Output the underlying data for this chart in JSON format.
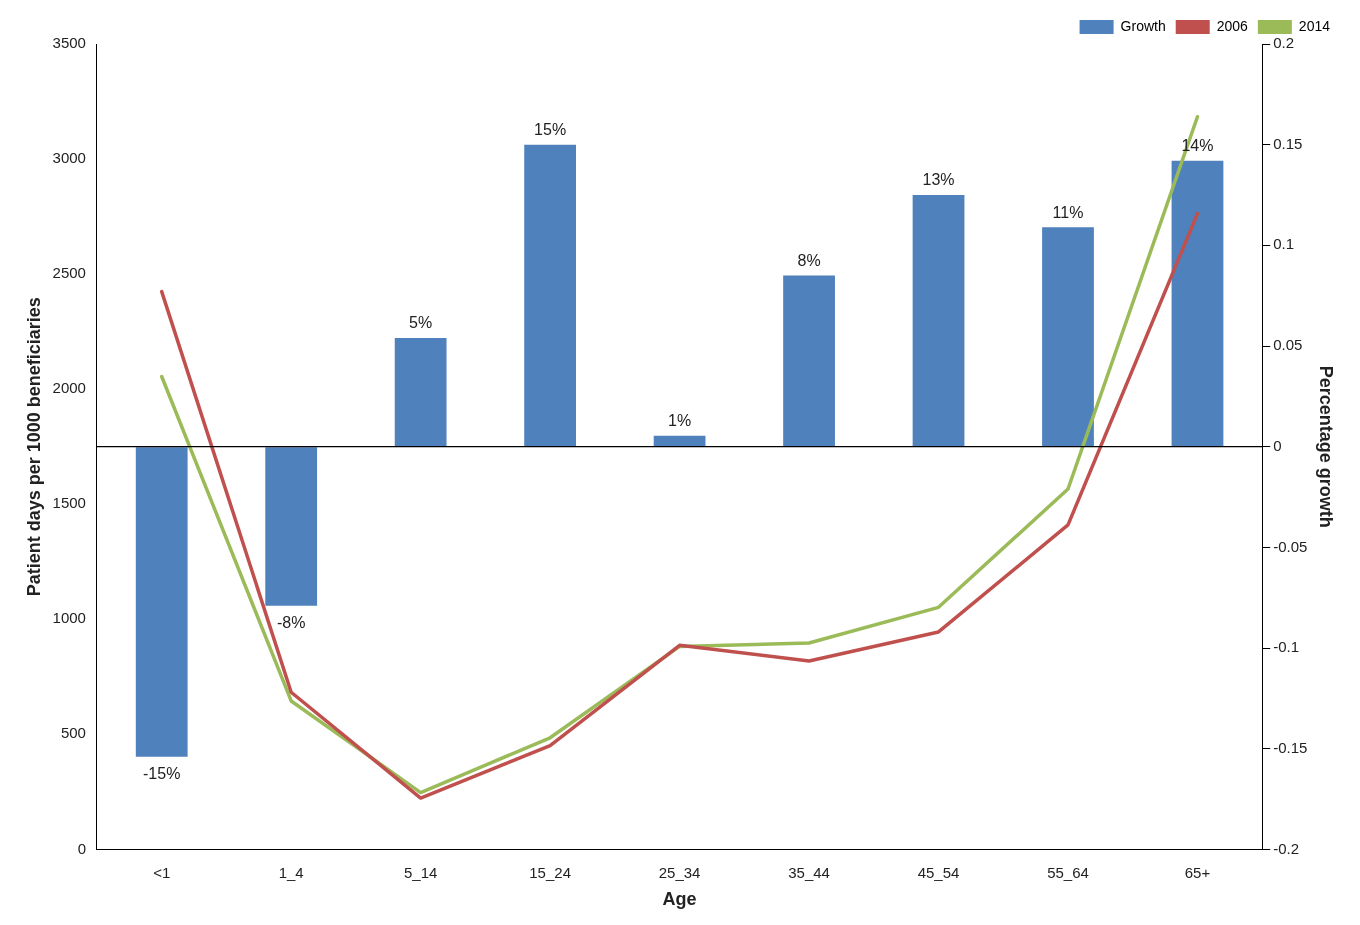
{
  "chart_data": {
    "type": "bar",
    "xlabel": "Age",
    "ylabel": "Patient days per 1000 beneficiaries",
    "y2label": "Percentage growth",
    "categories": [
      "<1",
      "1_4",
      "5_14",
      "15_24",
      "25_34",
      "35_44",
      "45_54",
      "55_64",
      "65+"
    ],
    "series": [
      {
        "name": "Growth",
        "axis": "y2",
        "color": "#4f81bd",
        "values": [
          -0.154,
          -0.079,
          0.054,
          0.15,
          0.0055,
          0.085,
          0.125,
          0.109,
          0.142
        ],
        "value_labels": [
          "-15%",
          "-8%",
          "5%",
          "15%",
          "1%",
          "8%",
          "13%",
          "11%",
          "14%"
        ]
      },
      {
        "name": "2006",
        "type": "line",
        "color": "#c0504d",
        "values": [
          2424,
          683,
          223,
          451,
          887,
          819,
          945,
          1410,
          2763
        ]
      },
      {
        "name": "2014",
        "type": "line",
        "color": "#9bbb59",
        "values": [
          2055,
          645,
          247,
          485,
          882,
          897,
          1052,
          1566,
          3184
        ]
      }
    ],
    "ylim": [
      0,
      3500
    ],
    "yticks": [
      0,
      500,
      1000,
      1500,
      2000,
      2500,
      3000,
      3500
    ],
    "y2lim": [
      -0.2,
      0.2
    ],
    "y2ticks": [
      -0.2,
      -0.15,
      -0.1,
      -0.05,
      0,
      0.05,
      0.1,
      0.15,
      0.2
    ],
    "ref_lines": [
      {
        "axis": "y2",
        "value": 0,
        "color": "#000000"
      }
    ],
    "grid": false,
    "legend": "top right",
    "marker": "none",
    "line_style": "solid"
  }
}
